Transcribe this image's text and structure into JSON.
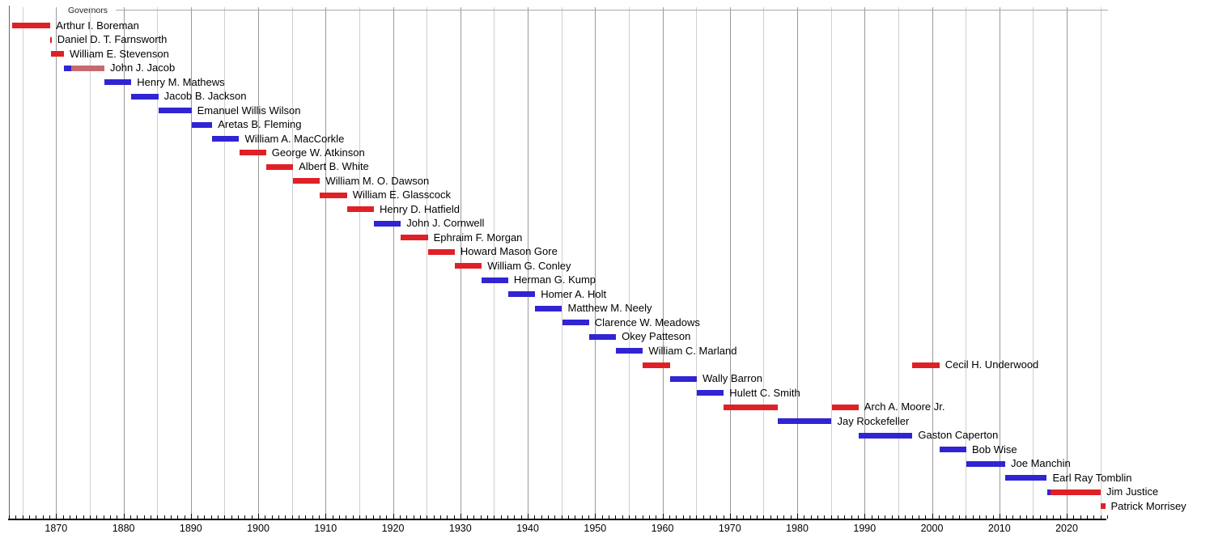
{
  "title": "Governors",
  "colors": {
    "republican": "#E02027",
    "democratic": "#3124D3",
    "independent": "#C66A6E",
    "grid_minor": "#CFCFCF",
    "grid_decade": "#999999",
    "frame": "#666666",
    "header_rule": "#AAAAAA",
    "axis": "#000000"
  },
  "axis": {
    "start_year": 1863,
    "end_year": 2026,
    "tick_interval_years": 1,
    "gridline_interval_years": 5,
    "decade_labels": [
      "1870",
      "1880",
      "1890",
      "1900",
      "1910",
      "1920",
      "1930",
      "1940",
      "1950",
      "1960",
      "1970",
      "1980",
      "1990",
      "2000",
      "2010",
      "2020"
    ],
    "decade_label_years": [
      1870,
      1880,
      1890,
      1900,
      1910,
      1920,
      1930,
      1940,
      1950,
      1960,
      1970,
      1980,
      1990,
      2000,
      2010,
      2020
    ]
  },
  "chart_data": {
    "type": "bar",
    "title": "Governors",
    "xlabel": "",
    "ylabel": "",
    "xlim": [
      1863,
      2026
    ],
    "grid": true,
    "legend_position": "none",
    "orientation": "horizontal-timeline",
    "governors": [
      {
        "name": "Arthur I. Boreman",
        "segments": [
          {
            "start": 1863.47,
            "end": 1869.16,
            "party": "republican"
          }
        ]
      },
      {
        "name": "Daniel D. T. Farnsworth",
        "segments": [
          {
            "start": 1869.16,
            "end": 1869.18,
            "party": "republican"
          }
        ]
      },
      {
        "name": "William E. Stevenson",
        "segments": [
          {
            "start": 1869.18,
            "end": 1871.17,
            "party": "republican"
          }
        ]
      },
      {
        "name": "John J. Jacob",
        "segments": [
          {
            "start": 1871.17,
            "end": 1872.2,
            "party": "democratic"
          },
          {
            "start": 1872.2,
            "end": 1877.17,
            "party": "independent"
          }
        ]
      },
      {
        "name": "Henry M. Mathews",
        "segments": [
          {
            "start": 1877.17,
            "end": 1881.17,
            "party": "democratic"
          }
        ]
      },
      {
        "name": "Jacob B. Jackson",
        "segments": [
          {
            "start": 1881.17,
            "end": 1885.17,
            "party": "democratic"
          }
        ]
      },
      {
        "name": "Emanuel Willis Wilson",
        "segments": [
          {
            "start": 1885.17,
            "end": 1890.1,
            "party": "democratic"
          }
        ]
      },
      {
        "name": "Aretas B. Fleming",
        "segments": [
          {
            "start": 1890.1,
            "end": 1893.17,
            "party": "democratic"
          }
        ]
      },
      {
        "name": "William A. MacCorkle",
        "segments": [
          {
            "start": 1893.17,
            "end": 1897.17,
            "party": "democratic"
          }
        ]
      },
      {
        "name": "George W. Atkinson",
        "segments": [
          {
            "start": 1897.17,
            "end": 1901.17,
            "party": "republican"
          }
        ]
      },
      {
        "name": "Albert B. White",
        "segments": [
          {
            "start": 1901.17,
            "end": 1905.17,
            "party": "republican"
          }
        ]
      },
      {
        "name": "William M. O. Dawson",
        "segments": [
          {
            "start": 1905.17,
            "end": 1909.17,
            "party": "republican"
          }
        ]
      },
      {
        "name": "William E. Glasscock",
        "segments": [
          {
            "start": 1909.17,
            "end": 1913.17,
            "party": "republican"
          }
        ]
      },
      {
        "name": "Henry D. Hatfield",
        "segments": [
          {
            "start": 1913.17,
            "end": 1917.17,
            "party": "republican"
          }
        ]
      },
      {
        "name": "John J. Cornwell",
        "segments": [
          {
            "start": 1917.17,
            "end": 1921.17,
            "party": "democratic"
          }
        ]
      },
      {
        "name": "Ephraim F. Morgan",
        "segments": [
          {
            "start": 1921.17,
            "end": 1925.17,
            "party": "republican"
          }
        ]
      },
      {
        "name": "Howard Mason Gore",
        "segments": [
          {
            "start": 1925.17,
            "end": 1929.17,
            "party": "republican"
          }
        ]
      },
      {
        "name": "William G. Conley",
        "segments": [
          {
            "start": 1929.17,
            "end": 1933.17,
            "party": "republican"
          }
        ]
      },
      {
        "name": "Herman G. Kump",
        "segments": [
          {
            "start": 1933.17,
            "end": 1937.1,
            "party": "democratic"
          }
        ]
      },
      {
        "name": "Homer A. Holt",
        "segments": [
          {
            "start": 1937.1,
            "end": 1941.1,
            "party": "democratic"
          }
        ]
      },
      {
        "name": "Matthew M. Neely",
        "segments": [
          {
            "start": 1941.1,
            "end": 1945.1,
            "party": "democratic"
          }
        ]
      },
      {
        "name": "Clarence W. Meadows",
        "segments": [
          {
            "start": 1945.1,
            "end": 1949.1,
            "party": "democratic"
          }
        ]
      },
      {
        "name": "Okey Patteson",
        "segments": [
          {
            "start": 1949.1,
            "end": 1953.1,
            "party": "democratic"
          }
        ]
      },
      {
        "name": "William C. Marland",
        "segments": [
          {
            "start": 1953.1,
            "end": 1957.1,
            "party": "democratic"
          }
        ]
      },
      {
        "name": "Cecil H. Underwood",
        "segments": [
          {
            "start": 1957.1,
            "end": 1961.1,
            "party": "republican"
          },
          {
            "start": 1997.1,
            "end": 2001.1,
            "party": "republican"
          }
        ]
      },
      {
        "name": "Wally Barron",
        "segments": [
          {
            "start": 1961.1,
            "end": 1965.1,
            "party": "democratic"
          }
        ]
      },
      {
        "name": "Hulett C. Smith",
        "segments": [
          {
            "start": 1965.1,
            "end": 1969.1,
            "party": "democratic"
          }
        ]
      },
      {
        "name": "Arch A. Moore Jr.",
        "segments": [
          {
            "start": 1969.1,
            "end": 1977.1,
            "party": "republican"
          },
          {
            "start": 1985.1,
            "end": 1989.1,
            "party": "republican"
          }
        ]
      },
      {
        "name": "Jay Rockefeller",
        "segments": [
          {
            "start": 1977.1,
            "end": 1985.1,
            "party": "democratic"
          }
        ]
      },
      {
        "name": "Gaston Caperton",
        "segments": [
          {
            "start": 1989.1,
            "end": 1997.1,
            "party": "democratic"
          }
        ]
      },
      {
        "name": "Bob Wise",
        "segments": [
          {
            "start": 2001.1,
            "end": 2005.1,
            "party": "democratic"
          }
        ]
      },
      {
        "name": "Joe Manchin",
        "segments": [
          {
            "start": 2005.1,
            "end": 2010.87,
            "party": "democratic"
          }
        ]
      },
      {
        "name": "Earl Ray Tomblin",
        "segments": [
          {
            "start": 2010.87,
            "end": 2017.05,
            "party": "democratic"
          }
        ]
      },
      {
        "name": "Jim Justice",
        "segments": [
          {
            "start": 2017.05,
            "end": 2017.6,
            "party": "democratic"
          },
          {
            "start": 2017.6,
            "end": 2025.04,
            "party": "republican"
          }
        ]
      },
      {
        "name": "Patrick Morrisey",
        "segments": [
          {
            "start": 2025.04,
            "end": 2025.7,
            "party": "republican"
          }
        ]
      }
    ]
  }
}
